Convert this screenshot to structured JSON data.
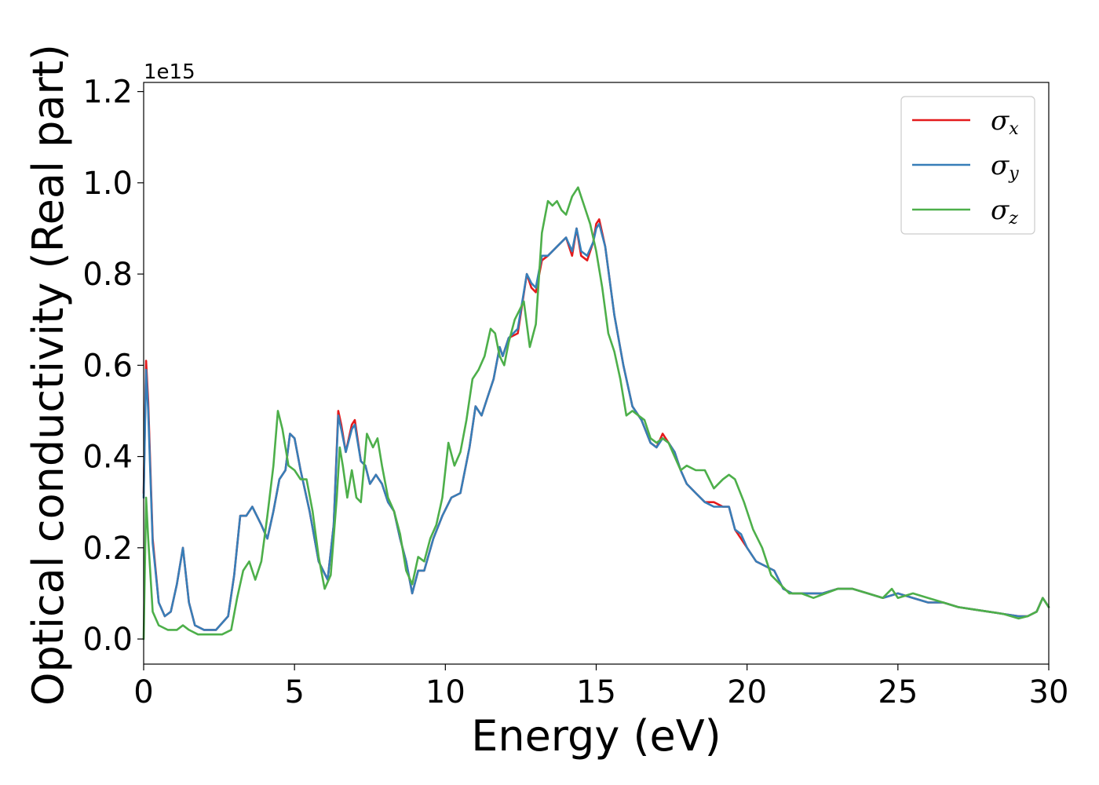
{
  "chart_data": {
    "type": "line",
    "xlabel": "Energy (eV)",
    "ylabel": "Optical conductivity (Real part)",
    "y_offset_label": "1e15",
    "xlim": [
      0,
      30
    ],
    "ylim": [
      -0.055,
      1.22
    ],
    "x_ticks": [
      0,
      5,
      10,
      15,
      20,
      25,
      30
    ],
    "x_tick_labels": [
      "0",
      "5",
      "10",
      "15",
      "20",
      "25",
      "30"
    ],
    "y_ticks": [
      0.0,
      0.2,
      0.4,
      0.6,
      0.8,
      1.0,
      1.2
    ],
    "y_tick_labels": [
      "0.0",
      "0.2",
      "0.4",
      "0.6",
      "0.8",
      "1.0",
      "1.2"
    ],
    "grid": false,
    "legend_position": "top-right",
    "series": [
      {
        "name": "σx",
        "symbol": "σ",
        "subscript": "x",
        "color": "#e41a1c",
        "x": [
          0,
          0.08,
          0.15,
          0.3,
          0.5,
          0.7,
          0.9,
          1.1,
          1.3,
          1.5,
          1.7,
          2.0,
          2.4,
          2.8,
          3.0,
          3.2,
          3.4,
          3.6,
          3.9,
          4.1,
          4.3,
          4.5,
          4.7,
          4.85,
          5.0,
          5.2,
          5.5,
          5.8,
          6.1,
          6.3,
          6.45,
          6.55,
          6.7,
          6.9,
          7.0,
          7.2,
          7.35,
          7.5,
          7.7,
          7.9,
          8.1,
          8.3,
          8.5,
          8.7,
          8.9,
          9.1,
          9.3,
          9.6,
          9.9,
          10.2,
          10.5,
          10.8,
          11.0,
          11.2,
          11.4,
          11.6,
          11.8,
          11.9,
          12.1,
          12.4,
          12.7,
          12.85,
          13.0,
          13.2,
          13.4,
          13.7,
          14.0,
          14.2,
          14.35,
          14.5,
          14.7,
          14.9,
          15.0,
          15.1,
          15.3,
          15.6,
          15.9,
          16.2,
          16.5,
          16.8,
          17.0,
          17.2,
          17.4,
          17.6,
          17.8,
          18.0,
          18.3,
          18.6,
          18.9,
          19.2,
          19.4,
          19.6,
          19.8,
          20.0,
          20.3,
          20.6,
          20.9,
          21.2,
          21.5,
          22.0,
          22.5,
          23.0,
          23.5,
          24.0,
          24.5,
          25.0,
          25.5,
          26.0,
          26.5,
          27.0,
          27.5,
          28.0,
          28.5,
          29.0,
          29.3,
          29.6,
          29.8,
          30.0
        ],
        "y": [
          0.32,
          0.61,
          0.52,
          0.22,
          0.08,
          0.05,
          0.06,
          0.12,
          0.2,
          0.08,
          0.03,
          0.02,
          0.02,
          0.05,
          0.14,
          0.27,
          0.27,
          0.29,
          0.25,
          0.22,
          0.28,
          0.35,
          0.37,
          0.45,
          0.44,
          0.37,
          0.28,
          0.17,
          0.13,
          0.25,
          0.5,
          0.47,
          0.41,
          0.47,
          0.48,
          0.39,
          0.38,
          0.34,
          0.36,
          0.34,
          0.3,
          0.28,
          0.22,
          0.17,
          0.1,
          0.15,
          0.15,
          0.22,
          0.27,
          0.31,
          0.32,
          0.42,
          0.51,
          0.49,
          0.53,
          0.57,
          0.64,
          0.62,
          0.66,
          0.67,
          0.8,
          0.77,
          0.76,
          0.83,
          0.84,
          0.86,
          0.88,
          0.84,
          0.9,
          0.84,
          0.83,
          0.87,
          0.91,
          0.92,
          0.86,
          0.71,
          0.6,
          0.51,
          0.48,
          0.43,
          0.42,
          0.45,
          0.43,
          0.41,
          0.37,
          0.34,
          0.32,
          0.3,
          0.3,
          0.29,
          0.29,
          0.24,
          0.22,
          0.2,
          0.17,
          0.16,
          0.15,
          0.11,
          0.1,
          0.1,
          0.1,
          0.11,
          0.11,
          0.1,
          0.09,
          0.1,
          0.09,
          0.08,
          0.08,
          0.07,
          0.065,
          0.06,
          0.055,
          0.05,
          0.05,
          0.06,
          0.09,
          0.07
        ]
      },
      {
        "name": "σy",
        "symbol": "σ",
        "subscript": "y",
        "color": "#377eb8",
        "x": [
          0,
          0.08,
          0.15,
          0.3,
          0.5,
          0.7,
          0.9,
          1.1,
          1.3,
          1.5,
          1.7,
          2.0,
          2.4,
          2.8,
          3.0,
          3.2,
          3.4,
          3.6,
          3.9,
          4.1,
          4.3,
          4.5,
          4.7,
          4.85,
          5.0,
          5.2,
          5.5,
          5.8,
          6.1,
          6.3,
          6.45,
          6.55,
          6.7,
          6.9,
          7.0,
          7.2,
          7.35,
          7.5,
          7.7,
          7.9,
          8.1,
          8.3,
          8.5,
          8.7,
          8.9,
          9.1,
          9.3,
          9.6,
          9.9,
          10.2,
          10.5,
          10.8,
          11.0,
          11.2,
          11.4,
          11.6,
          11.8,
          11.9,
          12.1,
          12.4,
          12.7,
          12.85,
          13.0,
          13.2,
          13.4,
          13.7,
          14.0,
          14.2,
          14.35,
          14.5,
          14.7,
          14.9,
          15.0,
          15.1,
          15.3,
          15.6,
          15.9,
          16.2,
          16.5,
          16.8,
          17.0,
          17.2,
          17.4,
          17.6,
          17.8,
          18.0,
          18.3,
          18.6,
          18.9,
          19.2,
          19.4,
          19.6,
          19.8,
          20.0,
          20.3,
          20.6,
          20.9,
          21.2,
          21.5,
          22.0,
          22.5,
          23.0,
          23.5,
          24.0,
          24.5,
          25.0,
          25.5,
          26.0,
          26.5,
          27.0,
          27.5,
          28.0,
          28.5,
          29.0,
          29.3,
          29.6,
          29.8,
          30.0
        ],
        "y": [
          0.31,
          0.59,
          0.5,
          0.21,
          0.08,
          0.05,
          0.06,
          0.12,
          0.2,
          0.08,
          0.03,
          0.02,
          0.02,
          0.05,
          0.14,
          0.27,
          0.27,
          0.29,
          0.25,
          0.22,
          0.28,
          0.35,
          0.37,
          0.45,
          0.44,
          0.37,
          0.28,
          0.17,
          0.13,
          0.25,
          0.49,
          0.46,
          0.41,
          0.46,
          0.47,
          0.39,
          0.38,
          0.34,
          0.36,
          0.34,
          0.3,
          0.28,
          0.22,
          0.17,
          0.1,
          0.15,
          0.15,
          0.22,
          0.27,
          0.31,
          0.32,
          0.42,
          0.51,
          0.49,
          0.53,
          0.57,
          0.64,
          0.62,
          0.66,
          0.68,
          0.8,
          0.78,
          0.77,
          0.84,
          0.84,
          0.86,
          0.88,
          0.85,
          0.9,
          0.85,
          0.84,
          0.87,
          0.9,
          0.91,
          0.86,
          0.71,
          0.6,
          0.51,
          0.48,
          0.43,
          0.42,
          0.44,
          0.43,
          0.41,
          0.37,
          0.34,
          0.32,
          0.3,
          0.29,
          0.29,
          0.29,
          0.24,
          0.23,
          0.2,
          0.17,
          0.16,
          0.15,
          0.11,
          0.1,
          0.1,
          0.1,
          0.11,
          0.11,
          0.1,
          0.09,
          0.1,
          0.09,
          0.08,
          0.08,
          0.07,
          0.065,
          0.06,
          0.055,
          0.05,
          0.05,
          0.06,
          0.09,
          0.07
        ]
      },
      {
        "name": "σz",
        "symbol": "σ",
        "subscript": "z",
        "color": "#4daf4a",
        "x": [
          0,
          0.08,
          0.15,
          0.3,
          0.5,
          0.8,
          1.1,
          1.3,
          1.5,
          1.8,
          2.2,
          2.6,
          2.9,
          3.1,
          3.3,
          3.5,
          3.7,
          3.9,
          4.1,
          4.3,
          4.45,
          4.6,
          4.8,
          5.0,
          5.2,
          5.4,
          5.6,
          5.8,
          6.0,
          6.2,
          6.4,
          6.5,
          6.6,
          6.75,
          6.9,
          7.05,
          7.2,
          7.4,
          7.6,
          7.75,
          7.9,
          8.1,
          8.3,
          8.5,
          8.7,
          8.9,
          9.1,
          9.3,
          9.5,
          9.7,
          9.9,
          10.1,
          10.3,
          10.5,
          10.7,
          10.9,
          11.1,
          11.3,
          11.5,
          11.65,
          11.8,
          11.95,
          12.1,
          12.3,
          12.6,
          12.8,
          13.0,
          13.2,
          13.4,
          13.55,
          13.7,
          13.85,
          14.0,
          14.2,
          14.4,
          14.6,
          14.8,
          15.0,
          15.2,
          15.4,
          15.6,
          15.8,
          16.0,
          16.2,
          16.4,
          16.6,
          16.8,
          17.0,
          17.2,
          17.4,
          17.6,
          17.8,
          18.0,
          18.3,
          18.6,
          18.9,
          19.2,
          19.4,
          19.6,
          19.9,
          20.2,
          20.5,
          20.8,
          21.1,
          21.4,
          21.8,
          22.2,
          22.6,
          23.0,
          23.5,
          24.0,
          24.5,
          24.8,
          25.0,
          25.5,
          26.0,
          26.5,
          27.0,
          27.5,
          28.0,
          28.5,
          29.0,
          29.3,
          29.6,
          29.8,
          30.0
        ],
        "y": [
          0.0,
          0.31,
          0.22,
          0.06,
          0.03,
          0.02,
          0.02,
          0.03,
          0.02,
          0.01,
          0.01,
          0.01,
          0.02,
          0.09,
          0.15,
          0.17,
          0.13,
          0.17,
          0.27,
          0.38,
          0.5,
          0.46,
          0.38,
          0.37,
          0.35,
          0.35,
          0.28,
          0.18,
          0.11,
          0.14,
          0.31,
          0.42,
          0.38,
          0.31,
          0.37,
          0.31,
          0.3,
          0.45,
          0.42,
          0.44,
          0.38,
          0.31,
          0.28,
          0.23,
          0.15,
          0.12,
          0.18,
          0.17,
          0.22,
          0.25,
          0.31,
          0.43,
          0.38,
          0.41,
          0.48,
          0.57,
          0.59,
          0.62,
          0.68,
          0.67,
          0.62,
          0.6,
          0.65,
          0.7,
          0.74,
          0.64,
          0.69,
          0.89,
          0.96,
          0.95,
          0.96,
          0.94,
          0.93,
          0.97,
          0.99,
          0.95,
          0.91,
          0.85,
          0.77,
          0.67,
          0.63,
          0.57,
          0.49,
          0.5,
          0.49,
          0.48,
          0.44,
          0.43,
          0.44,
          0.43,
          0.4,
          0.37,
          0.38,
          0.37,
          0.37,
          0.33,
          0.35,
          0.36,
          0.35,
          0.3,
          0.24,
          0.2,
          0.14,
          0.12,
          0.1,
          0.1,
          0.09,
          0.1,
          0.11,
          0.11,
          0.1,
          0.09,
          0.11,
          0.09,
          0.1,
          0.09,
          0.08,
          0.07,
          0.065,
          0.06,
          0.055,
          0.045,
          0.05,
          0.06,
          0.09,
          0.07
        ]
      }
    ]
  }
}
